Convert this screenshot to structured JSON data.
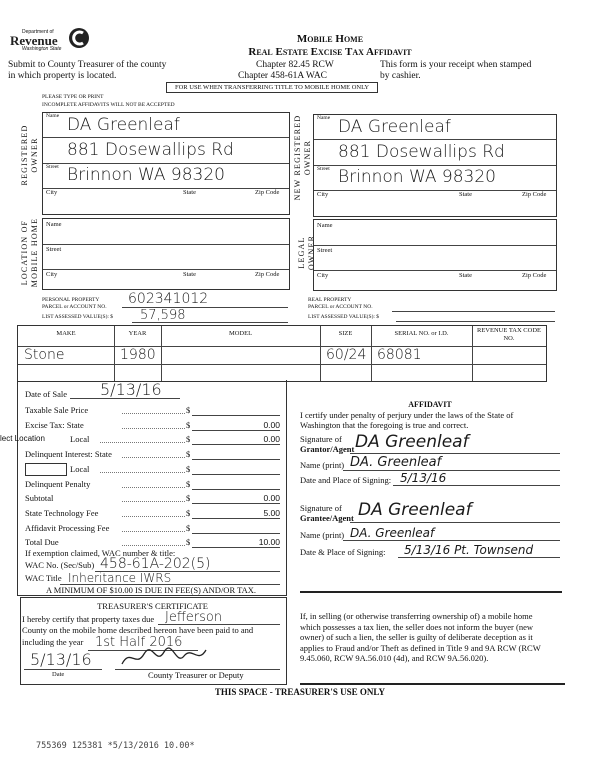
{
  "header": {
    "logo_dept": "Department of",
    "logo_name": "Revenue",
    "logo_state": "Washington State",
    "title_line1": "Mobile Home",
    "title_line2": "Real Estate Excise Tax Affidavit",
    "submit_line1": "Submit to County Treasurer of the county",
    "submit_line2": "in which property is located.",
    "chapter_rcw": "Chapter 82.45 RCW",
    "chapter_wac": "Chapter 458-61A WAC",
    "receipt_line1": "This form is your receipt when stamped",
    "receipt_line2": "by cashier.",
    "banner": "FOR USE WHEN TRANSFERRING TITLE TO MOBILE HOME ONLY",
    "type_or_print": "PLEASE TYPE OR PRINT",
    "incomplete": "INCOMPLETE AFFIDAVITS WILL NOT BE ACCEPTED"
  },
  "labels": {
    "name": "Name",
    "street": "Street",
    "city": "City",
    "state": "State",
    "zip": "Zip Code"
  },
  "registered_owner": {
    "label1": "REGISTERED",
    "label2": "OWNER",
    "name": "DA Greenleaf",
    "street": "881 Dosewallips Rd",
    "city_state_zip": "Brinnon  WA  98320"
  },
  "new_registered_owner": {
    "label1": "NEW REGISTERED",
    "label2": "OWNER",
    "name": "DA Greenleaf",
    "street": "881 Dosewallips Rd",
    "city_state_zip": "Brinnon  WA  98320"
  },
  "location": {
    "label1": "LOCATION OF",
    "label2": "MOBILE HOME"
  },
  "legal_owner": {
    "label1": "LEGAL OWNER"
  },
  "personal_property": {
    "line1": "PERSONAL PROPERTY",
    "line2": "PARCEL or ACCOUNT NO.",
    "value_label": "LIST ASSESSED VALUE(S): $",
    "account": "602341012",
    "value": "57,598"
  },
  "real_property": {
    "line1": "REAL PROPERTY",
    "line2": "PARCEL or ACCOUNT NO.",
    "value_label": "LIST ASSESSED VALUE(S): $"
  },
  "home_table": {
    "headers": [
      "MAKE",
      "YEAR",
      "MODEL",
      "SIZE",
      "SERIAL NO. or I.D.",
      "REVENUE TAX CODE NO."
    ],
    "row": [
      "Stone",
      "1980",
      "",
      "60/24",
      "68081",
      ""
    ]
  },
  "fees": {
    "date_of_sale_label": "Date of Sale",
    "date_of_sale": "5/13/16",
    "items": [
      {
        "label": "Taxable Sale Price",
        "value": ""
      },
      {
        "label": "Excise Tax:   State",
        "value": "0.00"
      },
      {
        "label": "Local",
        "value": "0.00"
      },
      {
        "label": "Delinquent Interest:   State",
        "value": ""
      },
      {
        "label": "Local",
        "value": ""
      },
      {
        "label": "Delinquent Penalty",
        "value": ""
      },
      {
        "label": "Subtotal",
        "value": "0.00"
      },
      {
        "label": "State Technology Fee",
        "value": "5.00"
      },
      {
        "label": "Affidavit Processing Fee",
        "value": ""
      },
      {
        "label": "Total Due",
        "value": "10.00"
      }
    ],
    "dollar": "$",
    "select_location": "lect Location",
    "exemption_label": "If exemption claimed, WAC number & title:",
    "wac_no_label": "WAC No. (Sec/Sub)",
    "wac_no": "458-61A-202(5)",
    "wac_title_label": "WAC Title",
    "wac_title": "Inheritance  IWRS",
    "minimum": "A MINIMUM OF $10.00 IS DUE IN FEE(S) AND/OR TAX."
  },
  "affidavit": {
    "title": "AFFIDAVIT",
    "cert_line1": "I certify under penalty of perjury under the laws of the State of",
    "cert_line2": "Washington that the foregoing is true and correct.",
    "grantor_sig_label1": "Signature of",
    "grantor_sig_label2": "Grantor/Agent",
    "grantor_sig": "DA Greenleaf",
    "grantor_name_label": "Name (print)",
    "grantor_name": "DA. Greenleaf",
    "grantor_date_label": "Date and Place of Signing:",
    "grantor_date": "5/13/16",
    "grantee_sig_label1": "Signature of",
    "grantee_sig_label2": "Grantee/Agent",
    "grantee_sig": "DA Greenleaf",
    "grantee_name_label": "Name (print)",
    "grantee_name": "DA. Greenleaf",
    "grantee_date_label": "Date & Place of Signing:",
    "grantee_date": "5/13/16   Pt. Townsend"
  },
  "treasurer": {
    "title": "TREASURER'S CERTIFICATE",
    "line1": "I hereby certify that property taxes due",
    "county": "Jefferson",
    "line2": "County on the mobile home described hereon have been paid to and",
    "line3": "including the year",
    "year": "1st Half 2016",
    "date": "5/13/16",
    "signature": "signature",
    "date_label": "Date",
    "deputy_label": "County Treasurer or Deputy"
  },
  "warning": {
    "lines": [
      "If, in selling (or otherwise transferring ownership of) a mobile home",
      "which possesses a tax lien, the seller does not inform the buyer (new",
      "owner) of such a lien, the seller is guilty of deliberate deception as it",
      "applies to Fraud and/or Theft as defined in Title 9 and 9A RCW (RCW",
      "9.45.060, RCW 9A.56.010 (4d), and RCW 9A.56.020)."
    ]
  },
  "treasurer_use_only": "THIS SPACE - TREASURER'S USE ONLY",
  "stamp": "755369 125381 *5/13/2016 10.00*"
}
